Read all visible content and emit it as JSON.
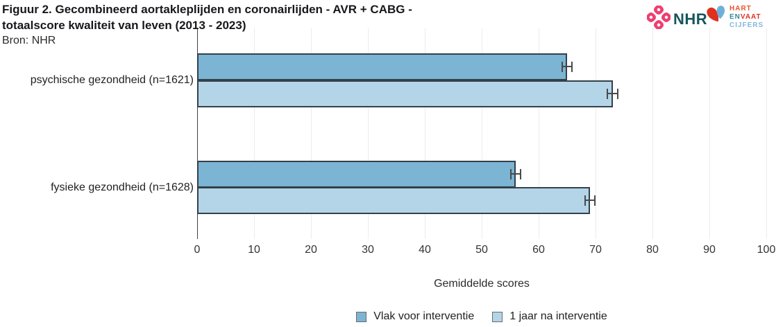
{
  "header": {
    "title_line1": "Figuur 2. Gecombineerd aortakleplijden en coronairlijden - AVR + CABG -",
    "title_line2": "totaalscore kwaliteit van leven (2013 - 2023)",
    "source": "Bron: NHR"
  },
  "logos": {
    "nhr": {
      "label": "NHR",
      "icon": "pink-knot-icon",
      "text_color": "#15565c",
      "icon_color": "#ee3f72"
    },
    "hartenvaatcijfers": {
      "line1": "HART",
      "line2a": "EN",
      "line2b": "VAAT",
      "line3": "CIJFERS",
      "icon": "two-tone-heart-icon",
      "colors": {
        "hart": "#e8552b",
        "en": "#2e8a99",
        "vaat": "#e0301e",
        "cijfers": "#85b7d9",
        "heart_red": "#e0301e",
        "heart_blue": "#6fb0d8"
      }
    }
  },
  "chart_data": {
    "type": "bar",
    "orientation": "horizontal",
    "title": "Figuur 2. Gecombineerd aortakleplijden en coronairlijden - AVR + CABG - totaalscore kwaliteit van leven (2013 - 2023)",
    "categories": [
      "psychische gezondheid (n=1621)",
      "fysieke gezondheid (n=1628)"
    ],
    "series": [
      {
        "name": "Vlak voor interventie",
        "color": "#7cb4d3",
        "values": [
          65,
          56
        ],
        "errors": [
          1,
          1
        ]
      },
      {
        "name": "1 jaar na interventie",
        "color": "#b4d5e8",
        "values": [
          73,
          69
        ],
        "errors": [
          1,
          1
        ]
      }
    ],
    "xlabel": "Gemiddelde scores",
    "ylabel": "",
    "xlim": [
      0,
      100
    ],
    "xticks": [
      0,
      10,
      20,
      30,
      40,
      50,
      60,
      70,
      80,
      90,
      100
    ],
    "grid": true,
    "legend_position": "bottom",
    "bar_border_color": "#33404a",
    "error_bar_color": "#4a4a4a"
  }
}
